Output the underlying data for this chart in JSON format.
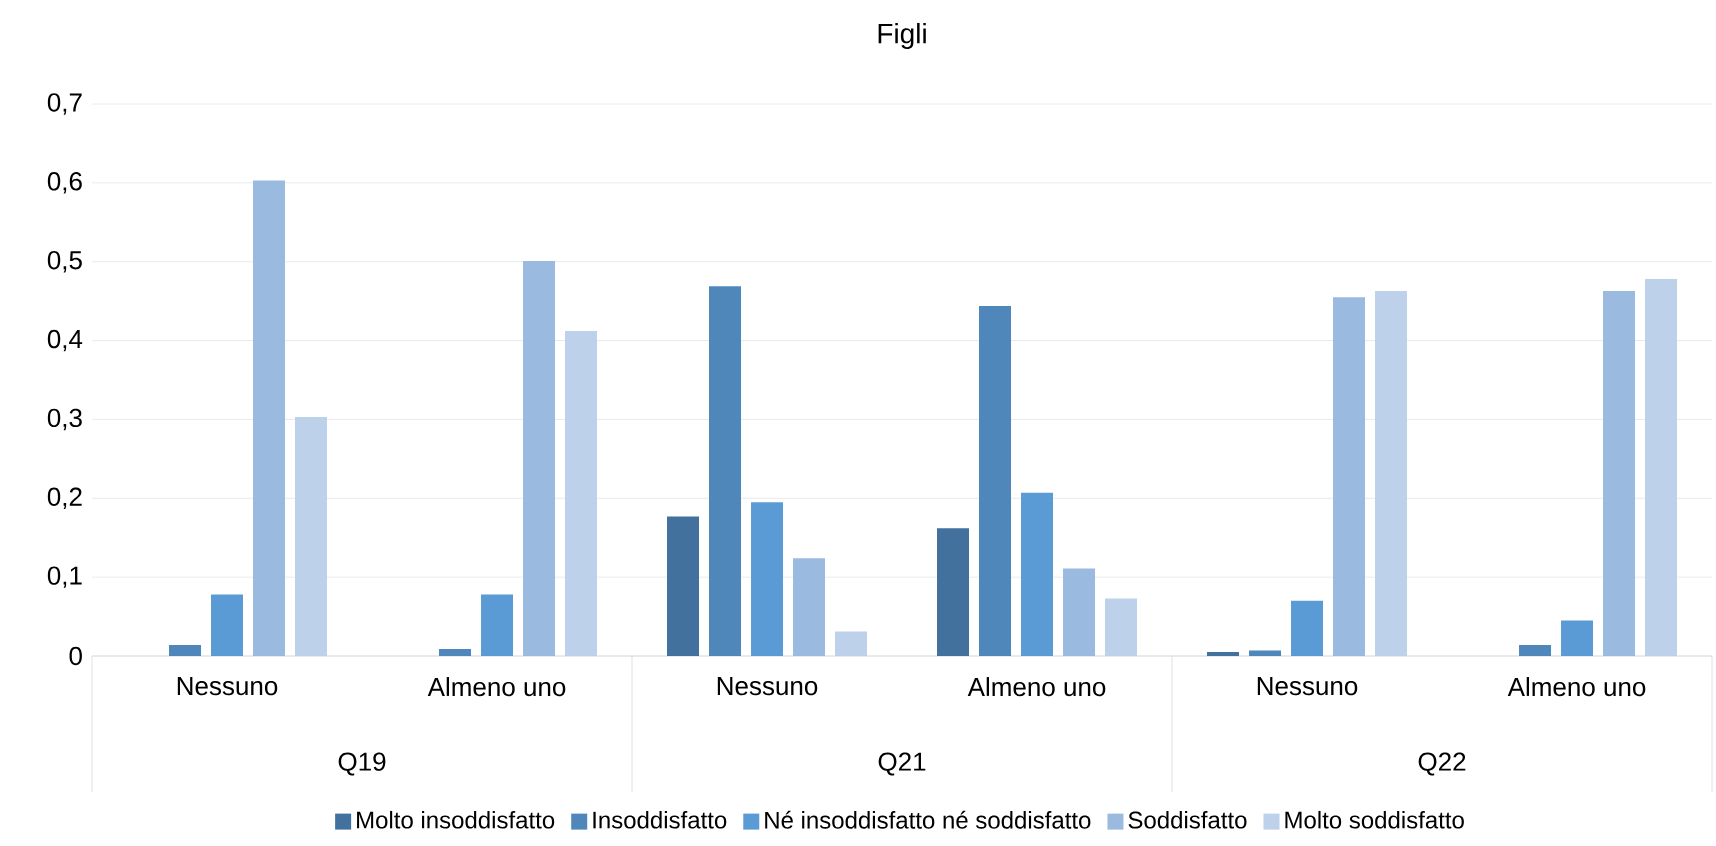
{
  "chart_data": {
    "type": "bar",
    "title": "Figli",
    "categories": [
      "Nessuno",
      "Almeno uno",
      "Nessuno",
      "Almeno uno",
      "Nessuno",
      "Almeno uno"
    ],
    "annotations": [
      "Q19",
      "Q21",
      "Q22"
    ],
    "series": [
      {
        "name": "Molto insoddisfatto",
        "color": "#41719c",
        "values": [
          0,
          0,
          0.177,
          0.162,
          0.005,
          0
        ]
      },
      {
        "name": "Insoddisfatto",
        "color": "#4f87bb",
        "values": [
          0.014,
          0.009,
          0.469,
          0.444,
          0.007,
          0.014
        ]
      },
      {
        "name": "Né insoddisfatto né soddisfatto",
        "color": "#5b9bd5",
        "values": [
          0.078,
          0.078,
          0.195,
          0.207,
          0.07,
          0.045
        ]
      },
      {
        "name": "Soddisfatto",
        "color": "#9bbae0",
        "values": [
          0.603,
          0.501,
          0.124,
          0.111,
          0.455,
          0.463
        ]
      },
      {
        "name": "Molto soddisfatto",
        "color": "#bdd1ea",
        "values": [
          0.303,
          0.412,
          0.031,
          0.073,
          0.463,
          0.478
        ]
      }
    ],
    "ylim": [
      0,
      0.7
    ],
    "yticks": [
      {
        "value": 0,
        "label": "0"
      },
      {
        "value": 0.1,
        "label": "0,1"
      },
      {
        "value": 0.2,
        "label": "0,2"
      },
      {
        "value": 0.3,
        "label": "0,3"
      },
      {
        "value": 0.4,
        "label": "0,4"
      },
      {
        "value": 0.5,
        "label": "0,5"
      },
      {
        "value": 0.6,
        "label": "0,6"
      },
      {
        "value": 0.7,
        "label": "0,7"
      }
    ],
    "grid": "y",
    "legend": "bottom"
  }
}
